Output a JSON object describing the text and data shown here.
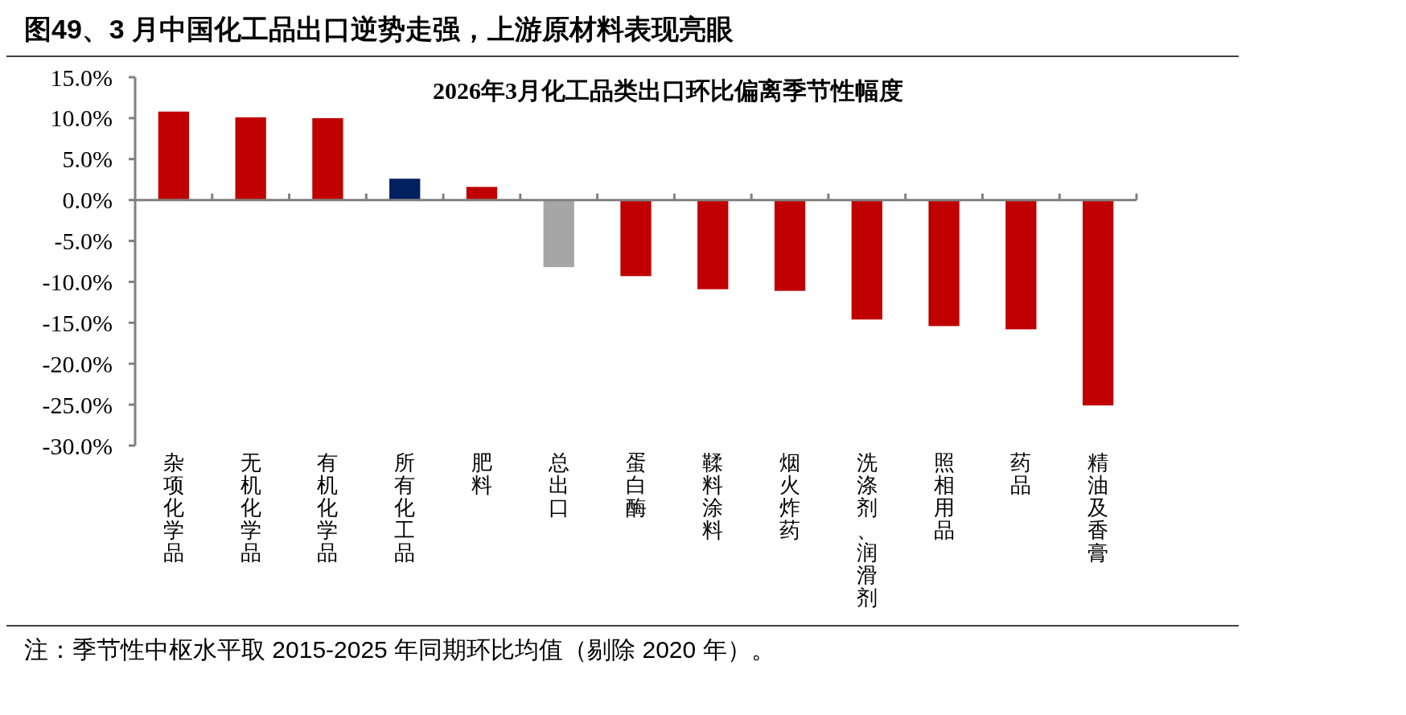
{
  "chart_data": {
    "type": "bar",
    "title": "图49、3 月中国化工品出口逆势走强，上游原材料表现亮眼",
    "subtitle": "2026年3月化工品类出口环比偏离季节性幅度",
    "categories": [
      "杂项化学品",
      "无机化学品",
      "有机化学品",
      "所有化工品",
      "肥料",
      "总出口",
      "蛋白酶",
      "鞣料涂料",
      "烟火炸药",
      "洗涤剂、润滑剂",
      "照相用品",
      "药品",
      "精油及香膏"
    ],
    "values": [
      10.8,
      10.1,
      10.0,
      2.6,
      1.6,
      -8.2,
      -9.3,
      -10.9,
      -11.1,
      -14.6,
      -15.4,
      -15.8,
      -25.1
    ],
    "colors": [
      "#c00000",
      "#c00000",
      "#c00000",
      "#002060",
      "#c00000",
      "#a6a6a6",
      "#c00000",
      "#c00000",
      "#c00000",
      "#c00000",
      "#c00000",
      "#c00000",
      "#c00000"
    ],
    "ylim": [
      -30,
      15
    ],
    "yticks": [
      {
        "value": 15,
        "label": "15.0%"
      },
      {
        "value": 10,
        "label": "10.0%"
      },
      {
        "value": 5,
        "label": "5.0%"
      },
      {
        "value": 0,
        "label": "0.0%"
      },
      {
        "value": -5,
        "label": "-5.0%"
      },
      {
        "value": -10,
        "label": "-10.0%"
      },
      {
        "value": -15,
        "label": "-15.0%"
      },
      {
        "value": -20,
        "label": "-20.0%"
      },
      {
        "value": -25,
        "label": "-25.0%"
      },
      {
        "value": -30,
        "label": "-30.0%"
      }
    ],
    "annotations": [
      "注：季节性中枢水平取 2015-2025 年同期环比均值（剔除 2020 年）。"
    ]
  }
}
